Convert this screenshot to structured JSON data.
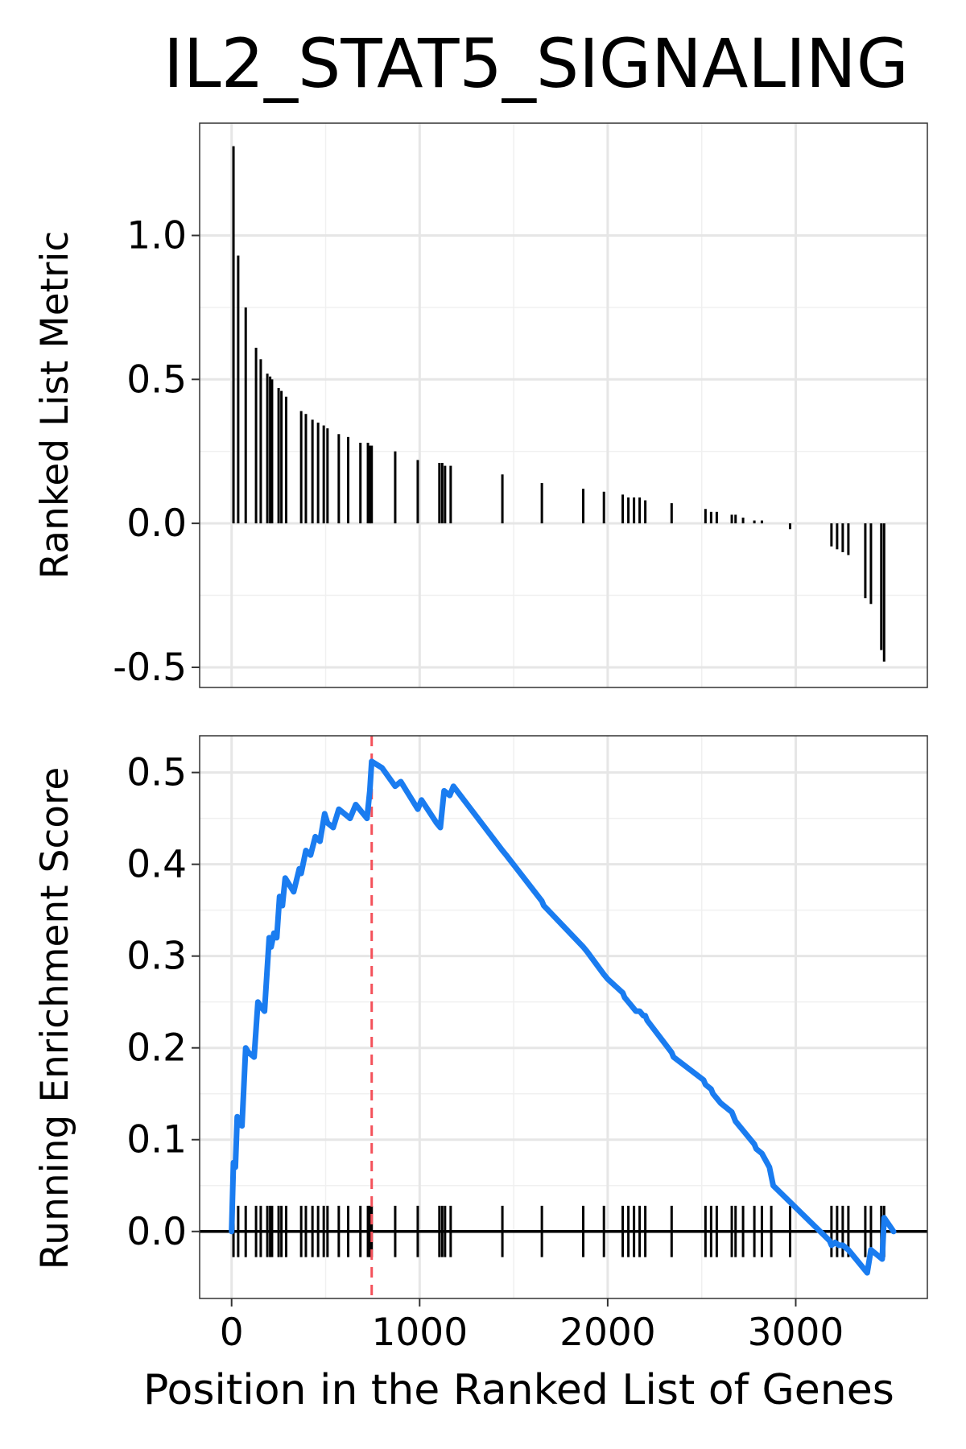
{
  "chart_data": [
    {
      "type": "bar",
      "panel": "top",
      "title": "IL2_STAT5_SIGNALING",
      "xlabel": "",
      "ylabel": "Ranked List Metric",
      "xlim": [
        -170,
        3700
      ],
      "ylim": [
        -0.57,
        1.39
      ],
      "yticks": [
        -0.5,
        0.0,
        0.5,
        1.0
      ],
      "ytick_labels": [
        "-0.5",
        "0.0",
        "0.5",
        "1.0"
      ],
      "xticks": [
        0,
        1000,
        2000,
        3000
      ],
      "grid": true,
      "x": [
        10,
        35,
        75,
        130,
        155,
        190,
        205,
        215,
        250,
        265,
        290,
        370,
        395,
        430,
        460,
        490,
        510,
        570,
        620,
        685,
        725,
        735,
        745,
        870,
        990,
        1105,
        1120,
        1135,
        1165,
        1440,
        1650,
        1870,
        1980,
        2080,
        2110,
        2140,
        2170,
        2200,
        2340,
        2520,
        2550,
        2580,
        2660,
        2680,
        2720,
        2780,
        2820,
        2870,
        2970,
        3190,
        3220,
        3250,
        3280,
        3370,
        3400,
        3455,
        3470
      ],
      "values": [
        1.31,
        0.93,
        0.75,
        0.61,
        0.57,
        0.52,
        0.51,
        0.5,
        0.47,
        0.46,
        0.44,
        0.39,
        0.38,
        0.36,
        0.35,
        0.34,
        0.33,
        0.31,
        0.3,
        0.28,
        0.28,
        0.27,
        0.27,
        0.25,
        0.22,
        0.21,
        0.21,
        0.2,
        0.2,
        0.17,
        0.14,
        0.12,
        0.11,
        0.1,
        0.09,
        0.09,
        0.09,
        0.08,
        0.07,
        0.05,
        0.04,
        0.04,
        0.03,
        0.03,
        0.02,
        0.01,
        0.01,
        0.0,
        -0.02,
        -0.08,
        -0.09,
        -0.1,
        -0.11,
        -0.26,
        -0.28,
        -0.44,
        -0.48
      ]
    },
    {
      "type": "line",
      "panel": "bottom",
      "series_name": "Running Enrichment Score",
      "color": "#1a7cf0",
      "xlabel": "Position in the Ranked List of Genes",
      "ylabel": "Running Enrichment Score",
      "xlim": [
        -170,
        3700
      ],
      "ylim": [
        -0.073,
        0.54
      ],
      "yticks": [
        0.0,
        0.1,
        0.2,
        0.3,
        0.4,
        0.5
      ],
      "ytick_labels": [
        "0.0",
        "0.1",
        "0.2",
        "0.3",
        "0.4",
        "0.5"
      ],
      "xticks": [
        0,
        1000,
        2000,
        3000
      ],
      "xtick_labels": [
        "0",
        "1000",
        "2000",
        "3000"
      ],
      "grid": true,
      "peak_x": 745,
      "peak_color": "#f4515a",
      "x": [
        0,
        10,
        20,
        30,
        55,
        75,
        90,
        120,
        140,
        155,
        175,
        200,
        210,
        225,
        240,
        255,
        270,
        285,
        300,
        330,
        360,
        370,
        395,
        420,
        445,
        470,
        495,
        510,
        540,
        570,
        600,
        630,
        660,
        700,
        720,
        735,
        745,
        800,
        870,
        900,
        990,
        1010,
        1090,
        1110,
        1130,
        1160,
        1180,
        1440,
        1460,
        1650,
        1660,
        1870,
        1890,
        1980,
        2000,
        2080,
        2090,
        2110,
        2130,
        2150,
        2170,
        2190,
        2200,
        2210,
        2340,
        2350,
        2510,
        2520,
        2550,
        2560,
        2580,
        2600,
        2660,
        2670,
        2680,
        2700,
        2720,
        2780,
        2790,
        2820,
        2860,
        2880,
        3180,
        3190,
        3210,
        3230,
        3250,
        3280,
        3360,
        3380,
        3400,
        3430,
        3460,
        3470,
        3520
      ],
      "y": [
        0.0,
        0.075,
        0.07,
        0.125,
        0.115,
        0.2,
        0.195,
        0.19,
        0.25,
        0.245,
        0.24,
        0.32,
        0.31,
        0.325,
        0.32,
        0.365,
        0.355,
        0.385,
        0.38,
        0.37,
        0.395,
        0.39,
        0.415,
        0.41,
        0.43,
        0.425,
        0.455,
        0.445,
        0.44,
        0.46,
        0.455,
        0.45,
        0.465,
        0.455,
        0.45,
        0.48,
        0.512,
        0.505,
        0.485,
        0.49,
        0.46,
        0.47,
        0.445,
        0.44,
        0.48,
        0.475,
        0.485,
        0.415,
        0.41,
        0.36,
        0.355,
        0.31,
        0.305,
        0.28,
        0.275,
        0.26,
        0.255,
        0.25,
        0.245,
        0.24,
        0.24,
        0.235,
        0.235,
        0.23,
        0.195,
        0.19,
        0.165,
        0.16,
        0.155,
        0.15,
        0.145,
        0.14,
        0.13,
        0.125,
        0.12,
        0.115,
        0.11,
        0.095,
        0.09,
        0.085,
        0.07,
        0.05,
        -0.01,
        -0.015,
        -0.012,
        -0.015,
        -0.015,
        -0.02,
        -0.04,
        -0.045,
        -0.02,
        -0.025,
        -0.03,
        0.015,
        0.0
      ],
      "hits": [
        10,
        35,
        75,
        130,
        155,
        190,
        205,
        215,
        250,
        265,
        290,
        370,
        395,
        430,
        460,
        490,
        510,
        570,
        620,
        685,
        725,
        735,
        745,
        870,
        990,
        1105,
        1120,
        1135,
        1165,
        1440,
        1650,
        1870,
        1980,
        2080,
        2110,
        2140,
        2170,
        2200,
        2340,
        2520,
        2550,
        2580,
        2660,
        2680,
        2720,
        2780,
        2820,
        2870,
        2970,
        3190,
        3220,
        3250,
        3280,
        3370,
        3400,
        3455,
        3470
      ]
    }
  ]
}
